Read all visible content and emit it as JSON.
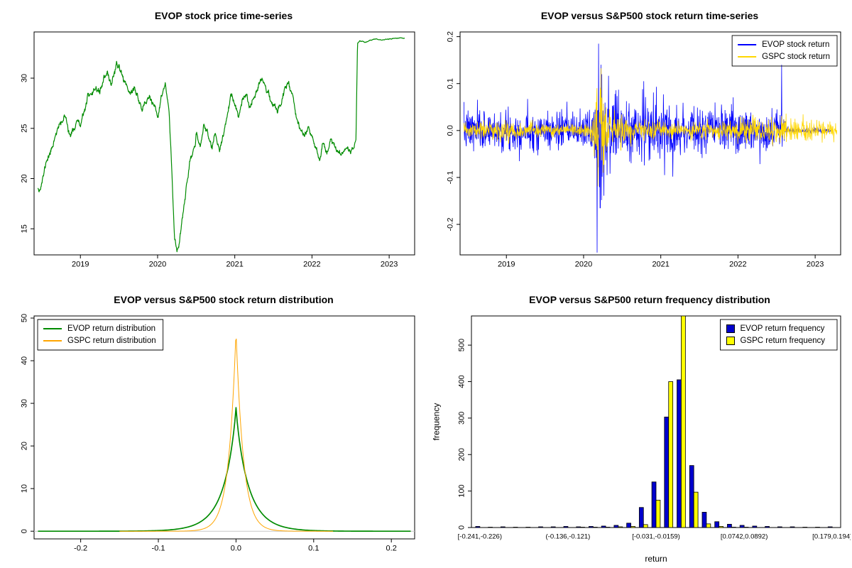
{
  "page": {
    "background": "#ffffff"
  },
  "chart_data": [
    {
      "id": "price",
      "type": "line",
      "title": "EVOP stock price time-series",
      "color": "#008B00",
      "xlim": [
        2018.4,
        2023.33
      ],
      "ylim": [
        12.4,
        34.6
      ],
      "xticks": [
        2019,
        2020,
        2021,
        2022,
        2023
      ],
      "yticks": [
        15,
        20,
        25,
        30
      ],
      "seed": 11,
      "noise_envelope": [
        [
          2018.45,
          0.22
        ],
        [
          2022.5,
          0.22
        ],
        [
          2022.58,
          0.12
        ],
        [
          2022.62,
          0.03
        ],
        [
          2023.2,
          0.03
        ]
      ],
      "points": [
        [
          2018.45,
          19.2
        ],
        [
          2018.48,
          19.0
        ],
        [
          2018.52,
          20.2
        ],
        [
          2018.56,
          21.8
        ],
        [
          2018.6,
          22.4
        ],
        [
          2018.64,
          23.2
        ],
        [
          2018.68,
          24.6
        ],
        [
          2018.72,
          25.1
        ],
        [
          2018.76,
          25.6
        ],
        [
          2018.8,
          26.2
        ],
        [
          2018.84,
          25.1
        ],
        [
          2018.88,
          24.2
        ],
        [
          2018.92,
          25.0
        ],
        [
          2018.96,
          25.9
        ],
        [
          2019.0,
          25.1
        ],
        [
          2019.05,
          26.6
        ],
        [
          2019.1,
          28.3
        ],
        [
          2019.15,
          27.9
        ],
        [
          2019.2,
          29.2
        ],
        [
          2019.25,
          28.5
        ],
        [
          2019.3,
          29.9
        ],
        [
          2019.35,
          30.3
        ],
        [
          2019.4,
          29.5
        ],
        [
          2019.45,
          30.9
        ],
        [
          2019.5,
          31.2
        ],
        [
          2019.55,
          30.1
        ],
        [
          2019.6,
          29.3
        ],
        [
          2019.65,
          28.4
        ],
        [
          2019.7,
          29.1
        ],
        [
          2019.75,
          27.9
        ],
        [
          2019.8,
          27.0
        ],
        [
          2019.85,
          27.6
        ],
        [
          2019.9,
          28.2
        ],
        [
          2019.95,
          27.1
        ],
        [
          2020.0,
          26.1
        ],
        [
          2020.05,
          28.1
        ],
        [
          2020.1,
          29.4
        ],
        [
          2020.15,
          26.5
        ],
        [
          2020.19,
          19.5
        ],
        [
          2020.22,
          14.2
        ],
        [
          2020.25,
          12.8
        ],
        [
          2020.28,
          13.6
        ],
        [
          2020.32,
          16.2
        ],
        [
          2020.36,
          18.4
        ],
        [
          2020.4,
          20.6
        ],
        [
          2020.45,
          22.4
        ],
        [
          2020.5,
          24.1
        ],
        [
          2020.55,
          23.1
        ],
        [
          2020.6,
          25.4
        ],
        [
          2020.65,
          24.4
        ],
        [
          2020.7,
          23.1
        ],
        [
          2020.75,
          24.6
        ],
        [
          2020.8,
          22.6
        ],
        [
          2020.85,
          24.1
        ],
        [
          2020.9,
          26.4
        ],
        [
          2020.95,
          28.1
        ],
        [
          2021.0,
          27.4
        ],
        [
          2021.05,
          26.1
        ],
        [
          2021.1,
          27.6
        ],
        [
          2021.15,
          28.4
        ],
        [
          2021.2,
          27.1
        ],
        [
          2021.25,
          28.1
        ],
        [
          2021.3,
          29.4
        ],
        [
          2021.35,
          30.1
        ],
        [
          2021.4,
          29.1
        ],
        [
          2021.45,
          28.1
        ],
        [
          2021.5,
          27.4
        ],
        [
          2021.55,
          26.6
        ],
        [
          2021.6,
          27.6
        ],
        [
          2021.65,
          29.1
        ],
        [
          2021.7,
          29.6
        ],
        [
          2021.75,
          28.4
        ],
        [
          2021.8,
          26.1
        ],
        [
          2021.85,
          25.1
        ],
        [
          2021.9,
          24.1
        ],
        [
          2021.95,
          25.1
        ],
        [
          2022.0,
          24.4
        ],
        [
          2022.05,
          23.1
        ],
        [
          2022.1,
          22.1
        ],
        [
          2022.15,
          23.4
        ],
        [
          2022.2,
          22.6
        ],
        [
          2022.25,
          24.1
        ],
        [
          2022.3,
          23.1
        ],
        [
          2022.35,
          22.4
        ],
        [
          2022.4,
          22.6
        ],
        [
          2022.45,
          23.1
        ],
        [
          2022.5,
          22.7
        ],
        [
          2022.54,
          23.2
        ],
        [
          2022.57,
          23.9
        ],
        [
          2022.59,
          33.4
        ],
        [
          2022.62,
          33.7
        ],
        [
          2022.7,
          33.6
        ],
        [
          2022.8,
          33.9
        ],
        [
          2022.9,
          33.8
        ],
        [
          2023.0,
          33.9
        ],
        [
          2023.1,
          34.0
        ],
        [
          2023.2,
          34.0
        ]
      ]
    },
    {
      "id": "returns",
      "type": "noisy-lines",
      "title": "EVOP versus S&P500 stock return time-series",
      "xlim": [
        2018.4,
        2023.33
      ],
      "ylim": [
        -0.265,
        0.21
      ],
      "xticks": [
        2019,
        2020,
        2021,
        2022,
        2023
      ],
      "yticks": [
        -0.2,
        -0.1,
        0.0,
        0.1,
        0.2
      ],
      "ytick_labels": [
        "-0.2",
        "-0.1",
        "0.0",
        "0.1",
        "0.2"
      ],
      "legend": {
        "position": "topright",
        "marker": "line",
        "entries": [
          {
            "label": "EVOP stock return",
            "color": "#0000FF"
          },
          {
            "label": "GSPC stock return",
            "color": "#FFD700"
          }
        ]
      },
      "series": [
        {
          "name": "EVOP stock return",
          "color": "#0000FF",
          "seed": 7,
          "x_start": 2018.45,
          "x_end": 2023.2,
          "envelope": [
            [
              2018.45,
              0.022
            ],
            [
              2019.6,
              0.02
            ],
            [
              2020.0,
              0.018
            ],
            [
              2020.12,
              0.025
            ],
            [
              2020.17,
              0.06
            ],
            [
              2020.22,
              0.085
            ],
            [
              2020.3,
              0.05
            ],
            [
              2020.45,
              0.035
            ],
            [
              2020.7,
              0.03
            ],
            [
              2020.85,
              0.035
            ],
            [
              2021.1,
              0.028
            ],
            [
              2021.6,
              0.022
            ],
            [
              2022.0,
              0.024
            ],
            [
              2022.4,
              0.022
            ],
            [
              2022.55,
              0.02
            ],
            [
              2022.6,
              0.012
            ],
            [
              2022.65,
              0.002
            ],
            [
              2023.2,
              0.002
            ]
          ],
          "spikes": [
            [
              2020.175,
              -0.26
            ],
            [
              2020.195,
              0.185
            ],
            [
              2020.215,
              -0.165
            ],
            [
              2020.235,
              0.12
            ],
            [
              2020.78,
              0.105
            ],
            [
              2021.05,
              -0.095
            ],
            [
              2022.565,
              0.14
            ]
          ]
        },
        {
          "name": "GSPC stock return",
          "color": "#FFD700",
          "seed": 23,
          "x_start": 2018.45,
          "x_end": 2023.28,
          "envelope": [
            [
              2018.45,
              0.008
            ],
            [
              2018.95,
              0.012
            ],
            [
              2019.4,
              0.006
            ],
            [
              2019.9,
              0.006
            ],
            [
              2020.1,
              0.012
            ],
            [
              2020.18,
              0.035
            ],
            [
              2020.24,
              0.04
            ],
            [
              2020.35,
              0.02
            ],
            [
              2020.6,
              0.012
            ],
            [
              2020.9,
              0.009
            ],
            [
              2021.3,
              0.007
            ],
            [
              2021.8,
              0.008
            ],
            [
              2022.1,
              0.012
            ],
            [
              2022.5,
              0.013
            ],
            [
              2022.8,
              0.012
            ],
            [
              2023.1,
              0.009
            ],
            [
              2023.28,
              0.008
            ]
          ],
          "spikes": [
            [
              2020.185,
              -0.119
            ],
            [
              2020.215,
              0.088
            ],
            [
              2020.24,
              0.07
            ],
            [
              2020.255,
              -0.09
            ]
          ]
        }
      ]
    },
    {
      "id": "density",
      "type": "density",
      "title": "EVOP versus S&P500 stock return distribution",
      "xlim": [
        -0.26,
        0.23
      ],
      "ylim": [
        -1.8,
        50.5
      ],
      "xticks": [
        -0.2,
        -0.1,
        0.0,
        0.1,
        0.2
      ],
      "xtick_labels": [
        "-0.2",
        "-0.1",
        "0.0",
        "0.1",
        "0.2"
      ],
      "yticks": [
        0,
        10,
        20,
        30,
        40,
        50
      ],
      "legend": {
        "position": "topleft",
        "marker": "line",
        "entries": [
          {
            "label": "EVOP return distribution",
            "color": "#008B00"
          },
          {
            "label": "GSPC return distribution",
            "color": "#FFA500"
          }
        ]
      },
      "series": [
        {
          "name": "EVOP return distribution",
          "color": "#008B00",
          "peak": 29,
          "scale": 0.016,
          "power": 0.9,
          "width": 1.7,
          "range": [
            -0.255,
            0.225
          ]
        },
        {
          "name": "GSPC return distribution",
          "color": "#FFA500",
          "peak": 47,
          "scale": 0.0095,
          "power": 1.0,
          "width": 1.0,
          "range": [
            -0.15,
            0.125
          ]
        }
      ]
    },
    {
      "id": "histogram",
      "type": "grouped-bar",
      "title": "EVOP versus S&P500 return frequency distribution",
      "xlabel": "return",
      "ylabel": "frequency",
      "ylim": [
        0,
        580
      ],
      "yticks": [
        0,
        100,
        200,
        300,
        400,
        500
      ],
      "bin_labels_shown": [
        "[-0.241,-0.226)",
        "(-0.136,-0.121)",
        "[-0.031,-0.0159)",
        "[0.0742,0.0892)",
        "[0.179,0.194)"
      ],
      "label_positions": [
        0,
        7,
        14,
        21,
        28
      ],
      "legend": {
        "position": "topright",
        "marker": "square",
        "entries": [
          {
            "label": "EVOP return frequency",
            "color": "#0000CD"
          },
          {
            "label": "GSPC return frequency",
            "color": "#FFFF00"
          }
        ]
      },
      "series": [
        {
          "name": "EVOP return frequency",
          "color": "#0000CD",
          "values": [
            3,
            1,
            2,
            1,
            1,
            2,
            2,
            3,
            2,
            3,
            4,
            6,
            12,
            55,
            125,
            303,
            405,
            170,
            42,
            16,
            9,
            6,
            4,
            3,
            2,
            2,
            1,
            1,
            2
          ]
        },
        {
          "name": "GSPC return frequency",
          "color": "#FFFF00",
          "values": [
            0,
            0,
            0,
            0,
            0,
            0,
            0,
            0,
            1,
            1,
            1,
            2,
            3,
            8,
            75,
            400,
            580,
            97,
            10,
            3,
            1,
            1,
            0,
            0,
            0,
            0,
            0,
            0,
            0
          ]
        }
      ]
    }
  ]
}
